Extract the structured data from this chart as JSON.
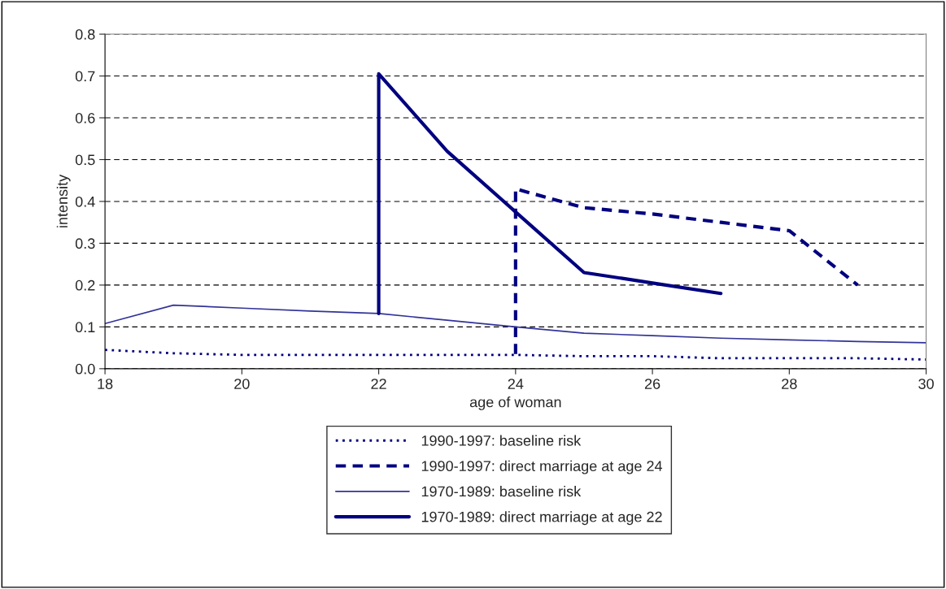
{
  "chart_data": {
    "type": "line",
    "xlabel": "age of woman",
    "ylabel": "intensity",
    "xlim": [
      18,
      30
    ],
    "xticks": [
      18,
      20,
      22,
      24,
      26,
      28,
      30
    ],
    "ylim": [
      0,
      0.8
    ],
    "yticks": [
      {
        "value": 0,
        "label": "0.0"
      },
      0.1,
      0.2,
      0.3,
      0.4,
      0.5,
      0.6,
      0.7,
      0.8
    ],
    "grid": "y",
    "legend": "bottom",
    "series": [
      {
        "name": "1990-1997: baseline risk",
        "color": "#000080",
        "line_style": "dotted",
        "x": [
          18,
          19,
          20,
          21,
          22,
          23,
          24,
          25,
          26,
          27,
          28,
          29,
          30
        ],
        "values": [
          0.045,
          0.037,
          0.033,
          0.033,
          0.033,
          0.033,
          0.033,
          0.03,
          0.03,
          0.025,
          0.025,
          0.025,
          0.022
        ]
      },
      {
        "name": "1990-1997: direct marriage at age 24",
        "color": "#000080",
        "line_style": "dashed",
        "x": [
          24,
          24,
          25,
          26,
          27,
          28,
          29
        ],
        "values": [
          0.035,
          0.43,
          0.385,
          0.37,
          0.35,
          0.33,
          0.2
        ]
      },
      {
        "name": "1970-1989: baseline risk",
        "color": "#333399",
        "line_style": "solid",
        "x": [
          18,
          19,
          20,
          21,
          22,
          23,
          24,
          25,
          26,
          27,
          28,
          29,
          30
        ],
        "values": [
          0.108,
          0.152,
          0.145,
          0.138,
          0.132,
          0.116,
          0.1,
          0.085,
          0.079,
          0.073,
          0.069,
          0.065,
          0.062
        ]
      },
      {
        "name": "1970-1989: direct marriage at age 22",
        "color": "#000080",
        "line_style": "solid",
        "x": [
          22,
          22,
          23,
          24,
          25,
          26,
          27
        ],
        "values": [
          0.132,
          0.705,
          0.52,
          0.375,
          0.23,
          0.205,
          0.18
        ]
      }
    ]
  }
}
